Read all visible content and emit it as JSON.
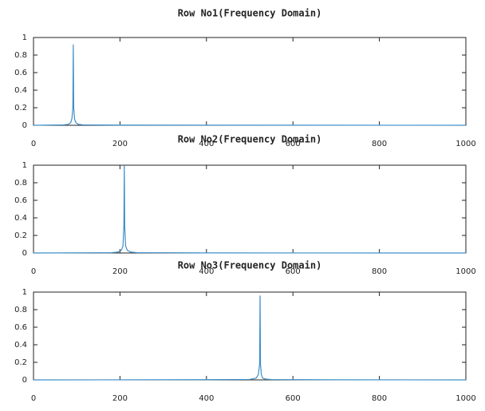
{
  "chart_data": [
    {
      "type": "line",
      "title": "Row No1(Frequency Domain)",
      "color": "#3d8ec9",
      "x": [
        0,
        70,
        80,
        86,
        89,
        91,
        92,
        93,
        95,
        98,
        104,
        115,
        200,
        1000
      ],
      "values": [
        0,
        0.005,
        0.01,
        0.03,
        0.08,
        0.2,
        0.92,
        0.2,
        0.07,
        0.03,
        0.01,
        0.005,
        0.002,
        0
      ],
      "xlim": [
        0,
        1000
      ],
      "ylim": [
        0,
        1
      ],
      "xticks": [
        0,
        200,
        400,
        600,
        800,
        1000
      ],
      "yticks": [
        0,
        0.2,
        0.4,
        0.6,
        0.8,
        1
      ]
    },
    {
      "type": "line",
      "title": "Row No2(Frequency Domain)",
      "color": "#3d8ec9",
      "x": [
        0,
        180,
        195,
        203,
        207,
        209,
        210,
        211,
        213,
        217,
        225,
        240,
        400,
        1000
      ],
      "values": [
        0,
        0.003,
        0.01,
        0.03,
        0.08,
        0.3,
        1,
        0.3,
        0.08,
        0.03,
        0.01,
        0.004,
        0.001,
        0
      ],
      "xlim": [
        0,
        1000
      ],
      "ylim": [
        0,
        1
      ],
      "xticks": [
        0,
        200,
        400,
        600,
        800,
        1000
      ],
      "yticks": [
        0,
        0.2,
        0.4,
        0.6,
        0.8,
        1
      ]
    },
    {
      "type": "line",
      "title": "Row No3(Frequency Domain)",
      "color": "#3d8ec9",
      "x": [
        0,
        400,
        500,
        515,
        520,
        523,
        524,
        525,
        527,
        530,
        538,
        550,
        700,
        1000
      ],
      "values": [
        0,
        0.002,
        0.005,
        0.02,
        0.06,
        0.18,
        0.96,
        0.18,
        0.06,
        0.02,
        0.008,
        0.004,
        0.001,
        0
      ],
      "xlim": [
        0,
        1000
      ],
      "ylim": [
        0,
        1
      ],
      "xticks": [
        0,
        200,
        400,
        600,
        800,
        1000
      ],
      "yticks": [
        0,
        0.2,
        0.4,
        0.6,
        0.8,
        1
      ]
    }
  ]
}
